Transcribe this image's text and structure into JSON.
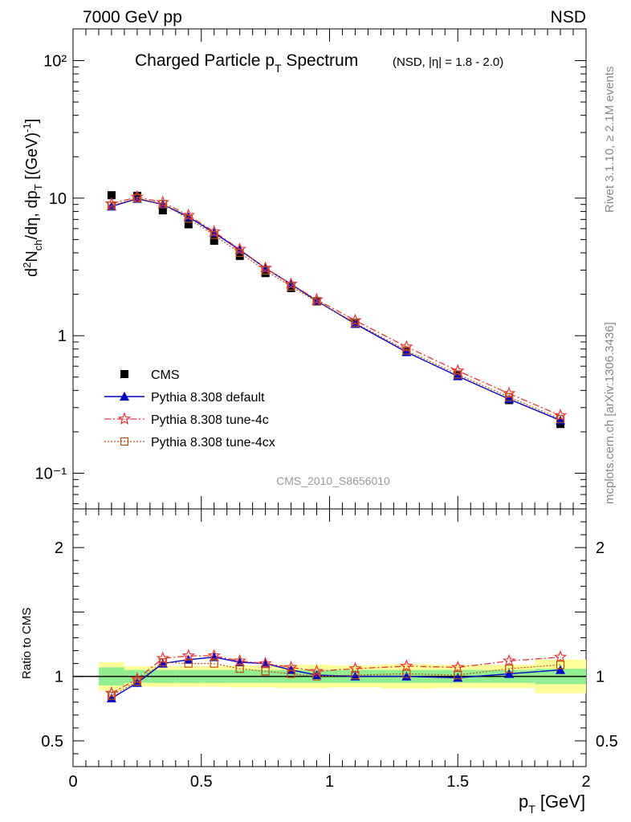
{
  "header": {
    "left": "7000 GeV pp",
    "right": "NSD"
  },
  "side_labels": {
    "rivet": "Rivet 3.1.10, ≥ 2.1M events",
    "mcplots": "mcplots.cern.ch [arXiv:1306.3436]"
  },
  "colors": {
    "cms": "#000000",
    "default": "#0000cc",
    "tune4c": "#ee3333",
    "tune4cx": "#c05010",
    "band_green": "#90ee90",
    "band_yellow": "#ffff99"
  },
  "chart_data": [
    {
      "type": "line",
      "title_main": "Charged Particle p",
      "title_sub": "T",
      "title_main2": " Spectrum",
      "title_extra": "(NSD, |η| = 1.8 - 2.0)",
      "ylabel": "d²N_ch/dη, dp_T [(GeV)⁻¹]",
      "xlabel": "",
      "watermark": "CMS_2010_S8656010",
      "yscale": "log",
      "xlim": [
        0,
        2
      ],
      "ylim": [
        0.055,
        170
      ],
      "y_tick_labels": [
        "10⁻¹",
        "1",
        "10",
        "10²"
      ],
      "legend_position": "lower-left",
      "x": [
        0.15,
        0.25,
        0.35,
        0.45,
        0.55,
        0.65,
        0.75,
        0.85,
        0.95,
        1.1,
        1.3,
        1.5,
        1.7,
        1.9
      ],
      "series": [
        {
          "name": "CMS",
          "marker": "square",
          "values": [
            10.5,
            10.4,
            8.15,
            6.45,
            4.9,
            3.8,
            2.85,
            2.22,
            1.78,
            1.22,
            0.765,
            0.515,
            0.34,
            0.228
          ]
        },
        {
          "name": "Pythia 8.308 default",
          "marker": "triangle",
          "values": [
            8.7,
            9.9,
            9.0,
            7.3,
            5.6,
            4.2,
            3.1,
            2.37,
            1.79,
            1.22,
            0.76,
            0.508,
            0.346,
            0.242
          ]
        },
        {
          "name": "Pythia 8.308 tune-4c",
          "marker": "star",
          "values": [
            9.1,
            10.2,
            9.3,
            7.5,
            5.7,
            4.25,
            3.1,
            2.37,
            1.83,
            1.29,
            0.83,
            0.555,
            0.38,
            0.263
          ]
        },
        {
          "name": "Pythia 8.308 tune-4cx",
          "marker": "open-square",
          "values": [
            8.8,
            10.0,
            9.05,
            7.1,
            5.4,
            4.0,
            2.98,
            2.28,
            1.77,
            1.24,
            0.78,
            0.523,
            0.358,
            0.248
          ]
        }
      ]
    },
    {
      "type": "line",
      "ylabel": "Ratio to CMS",
      "xlabel": "p_T [GeV]",
      "xlim": [
        0,
        2
      ],
      "ylim": [
        0.3,
        2.3
      ],
      "y_tick_labels": [
        "0.5",
        "1",
        "2"
      ],
      "x_tick_labels": [
        "0",
        "0.5",
        "1",
        "1.5",
        "2"
      ],
      "bands": [
        {
          "x": [
            0.1,
            0.2
          ],
          "green": [
            0.93,
            1.07
          ],
          "yellow": [
            0.89,
            1.11
          ]
        },
        {
          "x": [
            0.2,
            0.3
          ],
          "green": [
            0.95,
            1.05
          ],
          "yellow": [
            0.92,
            1.08
          ]
        },
        {
          "x": [
            0.3,
            0.4
          ],
          "green": [
            0.95,
            1.05
          ],
          "yellow": [
            0.92,
            1.08
          ]
        },
        {
          "x": [
            0.4,
            0.5
          ],
          "green": [
            0.95,
            1.05
          ],
          "yellow": [
            0.92,
            1.08
          ]
        },
        {
          "x": [
            0.5,
            0.6
          ],
          "green": [
            0.95,
            1.05
          ],
          "yellow": [
            0.92,
            1.08
          ]
        },
        {
          "x": [
            0.6,
            0.7
          ],
          "green": [
            0.95,
            1.05
          ],
          "yellow": [
            0.915,
            1.085
          ]
        },
        {
          "x": [
            0.7,
            0.8
          ],
          "green": [
            0.95,
            1.05
          ],
          "yellow": [
            0.915,
            1.085
          ]
        },
        {
          "x": [
            0.8,
            0.9
          ],
          "green": [
            0.95,
            1.05
          ],
          "yellow": [
            0.91,
            1.09
          ]
        },
        {
          "x": [
            0.9,
            1.0
          ],
          "green": [
            0.95,
            1.05
          ],
          "yellow": [
            0.91,
            1.09
          ]
        },
        {
          "x": [
            1.0,
            1.2
          ],
          "green": [
            0.95,
            1.05
          ],
          "yellow": [
            0.915,
            1.085
          ]
        },
        {
          "x": [
            1.2,
            1.4
          ],
          "green": [
            0.95,
            1.05
          ],
          "yellow": [
            0.905,
            1.095
          ]
        },
        {
          "x": [
            1.4,
            1.6
          ],
          "green": [
            0.95,
            1.05
          ],
          "yellow": [
            0.91,
            1.09
          ]
        },
        {
          "x": [
            1.6,
            1.8
          ],
          "green": [
            0.95,
            1.05
          ],
          "yellow": [
            0.91,
            1.09
          ]
        },
        {
          "x": [
            1.8,
            2.0
          ],
          "green": [
            0.94,
            1.06
          ],
          "yellow": [
            0.87,
            1.13
          ]
        }
      ],
      "x": [
        0.15,
        0.25,
        0.35,
        0.45,
        0.55,
        0.65,
        0.75,
        0.85,
        0.95,
        1.1,
        1.3,
        1.5,
        1.7,
        1.9
      ],
      "series": [
        {
          "name": "Pythia 8.308 default",
          "values": [
            0.83,
            0.95,
            1.1,
            1.13,
            1.15,
            1.11,
            1.1,
            1.05,
            1.01,
            1.0,
            1.0,
            0.99,
            1.02,
            1.05
          ]
        },
        {
          "name": "Pythia 8.308 tune-4c",
          "values": [
            0.87,
            0.98,
            1.14,
            1.16,
            1.16,
            1.12,
            1.1,
            1.07,
            1.04,
            1.06,
            1.08,
            1.07,
            1.12,
            1.15
          ]
        },
        {
          "name": "Pythia 8.308 tune-4cx",
          "values": [
            0.85,
            0.96,
            1.11,
            1.1,
            1.1,
            1.06,
            1.04,
            1.02,
            1.0,
            1.01,
            1.02,
            1.01,
            1.06,
            1.09
          ]
        }
      ]
    }
  ]
}
